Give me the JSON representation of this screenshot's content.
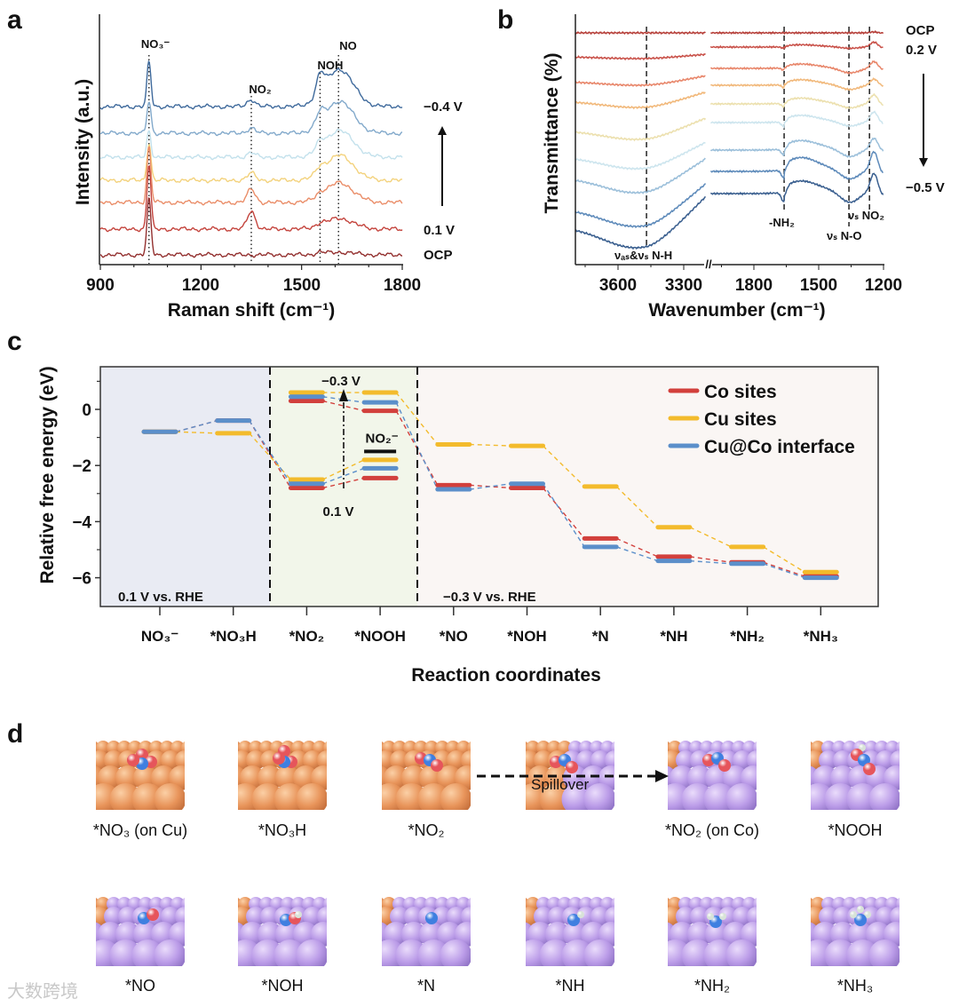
{
  "panel_letters": {
    "a": "a",
    "b": "b",
    "c": "c",
    "d": "d"
  },
  "chart_data": [
    {
      "id": "a",
      "type": "line",
      "title": "",
      "xlabel": "Raman shift (cm⁻¹)",
      "ylabel": "Intensity (a.u.)",
      "xlim": [
        900,
        1800
      ],
      "xticks": [
        "900",
        "1200",
        "1500",
        "1800"
      ],
      "grid": false,
      "peaks": [
        {
          "label": "NO₃⁻",
          "position": 1045
        },
        {
          "label": "NO₂",
          "position": 1350
        },
        {
          "label": "NOH",
          "position": 1555
        },
        {
          "label": "NO",
          "position": 1610
        }
      ],
      "arrow_direction": "up",
      "series": [
        {
          "name": "−0.4 V",
          "color": "#3f6a9c",
          "offset": 120,
          "peak_intensity": [
            50,
            8,
            22,
            42
          ]
        },
        {
          "name": "",
          "color": "#82a9cb",
          "offset": 150,
          "peak_intensity": [
            36,
            6,
            12,
            36
          ]
        },
        {
          "name": "",
          "color": "#c3e1ec",
          "offset": 177,
          "peak_intensity": [
            30,
            5,
            8,
            30
          ]
        },
        {
          "name": "",
          "color": "#f3d27c",
          "offset": 203,
          "peak_intensity": [
            42,
            8,
            6,
            28
          ]
        },
        {
          "name": "",
          "color": "#ea8d68",
          "offset": 228,
          "peak_intensity": [
            62,
            15,
            4,
            22
          ]
        },
        {
          "name": "0.1 V",
          "color": "#c4443d",
          "offset": 258,
          "peak_intensity": [
            72,
            20,
            3,
            12
          ]
        },
        {
          "name": "OCP",
          "color": "#93302f",
          "offset": 287,
          "peak_intensity": [
            62,
            0,
            2,
            3
          ]
        }
      ]
    },
    {
      "id": "b",
      "type": "line",
      "title": "",
      "xlabel": "Wavenumber (cm⁻¹)",
      "ylabel": "Transmittance (%)",
      "xlim_left": [
        3795,
        3200
      ],
      "xlim_right": [
        2000,
        1200
      ],
      "xticks_left": [
        "3600",
        "3300"
      ],
      "xticks_right": [
        "1800",
        "1500",
        "1200"
      ],
      "axis_break": "//",
      "grid": false,
      "bands": [
        {
          "label": "νₐₛ&νₛ N-H",
          "position": 3470
        },
        {
          "label": "-NH₂",
          "position": 1660
        },
        {
          "label": "νₛ N-O",
          "position": 1360
        },
        {
          "label": "νₛ NO₂",
          "position": 1265
        }
      ],
      "arrow_direction": "down",
      "series": [
        {
          "name": "OCP",
          "color": "#b63f39",
          "offset_left": 37,
          "offset_right": 37,
          "nh_stretch_depth": 0,
          "nh_rise": 0,
          "nh2_depth": 0,
          "hump": 0,
          "no_depth": 0,
          "no2_peak": 1
        },
        {
          "name": "0.2 V",
          "color": "#c9524a",
          "offset_left": 64,
          "offset_right": 53,
          "nh_stretch_depth": 2,
          "nh_rise": 3,
          "nh2_depth": 2,
          "hump": 2,
          "no_depth": 2,
          "no2_peak": 5
        },
        {
          "name": "",
          "color": "#e8866a",
          "offset_left": 92,
          "offset_right": 77,
          "nh_stretch_depth": 4,
          "nh_rise": 7,
          "nh2_depth": 3,
          "hump": 4,
          "no_depth": 6,
          "no2_peak": 7
        },
        {
          "name": "",
          "color": "#f1b87a",
          "offset_left": 114,
          "offset_right": 96,
          "nh_stretch_depth": 7,
          "nh_rise": 11,
          "nh2_depth": 4,
          "hump": 5,
          "no_depth": 6,
          "no2_peak": 6
        },
        {
          "name": "",
          "color": "#ece0ae",
          "offset_left": 147,
          "offset_right": 117,
          "nh_stretch_depth": 10,
          "nh_rise": 15,
          "nh2_depth": 5,
          "hump": 5,
          "no_depth": 6,
          "no2_peak": 9
        },
        {
          "name": "",
          "color": "#cde5ee",
          "offset_left": 177,
          "offset_right": 138,
          "nh_stretch_depth": 13,
          "nh_rise": 18,
          "nh2_depth": 7,
          "hump": 6,
          "no_depth": 6,
          "no2_peak": 10
        },
        {
          "name": "",
          "color": "#9bbfda",
          "offset_left": 200,
          "offset_right": 169,
          "nh_stretch_depth": 17,
          "nh_rise": 23,
          "nh2_depth": 9,
          "hump": 8,
          "no_depth": 10,
          "no2_peak": 11
        },
        {
          "name": "",
          "color": "#5d8aba",
          "offset_left": 235,
          "offset_right": 193,
          "nh_stretch_depth": 20,
          "nh_rise": 30,
          "nh2_depth": 12,
          "hump": 12,
          "no_depth": 12,
          "no2_peak": 19
        },
        {
          "name": "−0.5 V",
          "color": "#3a5f8f",
          "offset_left": 255,
          "offset_right": 218,
          "nh_stretch_depth": 24,
          "nh_rise": 36,
          "nh2_depth": 14,
          "hump": 10,
          "no_depth": 14,
          "no2_peak": 19
        }
      ]
    },
    {
      "id": "c",
      "type": "line",
      "subtype": "free-energy-diagram",
      "title": "",
      "xlabel": "Reaction coordinates",
      "ylabel": "Relative free energy (eV)",
      "ylim": [
        -7,
        1.5
      ],
      "yticks": [
        "0",
        "−2",
        "−4",
        "−6"
      ],
      "ytick_values": [
        0,
        -2,
        -4,
        -6
      ],
      "categories": [
        "NO₃⁻",
        "*NO₃H",
        "*NO₂",
        "*NOOH",
        "*NO",
        "*NOH",
        "*N",
        "*NH",
        "*NH₂",
        "*NH₃"
      ],
      "legend_position": "top-right",
      "regions": [
        {
          "label": "0.1 V vs. RHE",
          "color": "#e9ebf3"
        },
        {
          "label": "",
          "color": "#f2f6ea"
        },
        {
          "label": "−0.3 V vs. RHE",
          "color": "#faf6f4"
        }
      ],
      "annotations": {
        "high_potential": "−0.3 V",
        "low_potential": "0.1 V",
        "nitrite": "NO₂⁻",
        "nitrite_energy": -1.5
      },
      "series": [
        {
          "name": "Co sites",
          "color": "#d2403c",
          "path_0.1V": [
            -0.8,
            -0.4,
            -2.8,
            -2.45
          ],
          "path_-0.3V": [
            0.3,
            -0.05,
            -2.7,
            -2.8,
            -4.6,
            -5.25,
            -5.45,
            -5.95
          ]
        },
        {
          "name": "Cu sites",
          "color": "#f3bb2c",
          "path_0.1V": [
            -0.8,
            -0.85,
            -2.5,
            -1.8
          ],
          "path_-0.3V": [
            0.6,
            0.6,
            -1.25,
            -1.3,
            -2.75,
            -4.2,
            -4.9,
            -5.8
          ]
        },
        {
          "name": "Cu@Co interface",
          "color": "#5b8fca",
          "path_0.1V": [
            -0.8,
            -0.4,
            -2.65,
            -2.1
          ],
          "path_-0.3V": [
            0.45,
            0.25,
            -2.85,
            -2.65,
            -4.9,
            -5.4,
            -5.5,
            -6.0
          ]
        }
      ]
    }
  ],
  "panel_d": {
    "spillover_label": "Spillover",
    "tiles": [
      {
        "label": "*NO₃ (on Cu)",
        "surface": "Cu"
      },
      {
        "label": "*NO₃H",
        "surface": "Cu"
      },
      {
        "label": "*NO₂",
        "surface": "Cu"
      },
      {
        "label": "",
        "surface": "mixed"
      },
      {
        "label": "*NO₂ (on Co)",
        "surface": "Co"
      },
      {
        "label": "*NOOH",
        "surface": "Co"
      },
      {
        "label": "*NO",
        "surface": "Co"
      },
      {
        "label": "*NOH",
        "surface": "Co"
      },
      {
        "label": "*N",
        "surface": "Co"
      },
      {
        "label": "*NH",
        "surface": "Co"
      },
      {
        "label": "*NH₂",
        "surface": "Co"
      },
      {
        "label": "*NH₃",
        "surface": "Co"
      }
    ]
  },
  "watermark": "大数跨境"
}
